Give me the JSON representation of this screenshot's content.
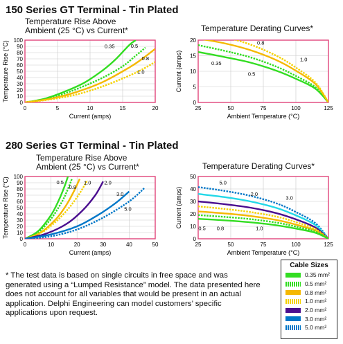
{
  "sections": [
    {
      "title": "150 Series GT Terminal - Tin Plated"
    },
    {
      "title": "280 Series GT Terminal - Tin Plated"
    }
  ],
  "chart_titles": {
    "rise_line1": "Temperature Rise Above",
    "rise_line2": "Ambient (25 °C) vs Current*",
    "derating": "Temperature Derating Curves*"
  },
  "note": "* The test data is based on single circuits in free space and was generated using a “Lumped Resistance” model. The data presented here does not account for all variables that would be present in an actual application. Delphi Engineering can model customers’ specific applications upon request.",
  "legend": {
    "title": "Cable Sizes",
    "items": [
      {
        "label": "0.35 mm²",
        "color": "#33dd22",
        "style": "solid"
      },
      {
        "label": "0.5 mm²",
        "color": "#33dd22",
        "style": "dotted"
      },
      {
        "label": "0.8 mm²",
        "color": "#f5b800",
        "style": "solid"
      },
      {
        "label": "1.0 mm²",
        "color": "#f5d200",
        "style": "dotted"
      },
      {
        "label": "2.0 mm²",
        "color": "#4a0d8f",
        "style": "solid"
      },
      {
        "label": "3.0 mm²",
        "color": "#0077c8",
        "style": "solid"
      },
      {
        "label": "5.0 mm²",
        "color": "#0077c8",
        "style": "dotted"
      }
    ]
  },
  "chart_data": [
    {
      "id": "150-rise",
      "type": "line",
      "xlabel": "Current (amps)",
      "ylabel": "Temperature Rise (°C)",
      "xlim": [
        0,
        20
      ],
      "ylim": [
        0,
        100
      ],
      "xticks": [
        0,
        5,
        10,
        15,
        20
      ],
      "yticks": [
        0,
        10,
        20,
        30,
        40,
        50,
        60,
        70,
        80,
        90,
        100
      ],
      "series": [
        {
          "name": "0.35",
          "color": "#33dd22",
          "style": "solid",
          "x": [
            0,
            3,
            6,
            9,
            12,
            14,
            16,
            17
          ],
          "y": [
            0,
            6,
            17,
            31,
            52,
            70,
            92,
            100
          ]
        },
        {
          "name": "0.5",
          "color": "#33dd22",
          "style": "dotted",
          "x": [
            0,
            3,
            6,
            9,
            12,
            15,
            17,
            18.5
          ],
          "y": [
            0,
            5,
            14,
            26,
            40,
            58,
            75,
            88
          ]
        },
        {
          "name": "0.8",
          "color": "#f5b800",
          "style": "solid",
          "x": [
            0,
            4,
            8,
            12,
            16,
            18,
            20
          ],
          "y": [
            0,
            6,
            17,
            33,
            56,
            70,
            86
          ]
        },
        {
          "name": "1.0",
          "color": "#f5d200",
          "style": "dotted",
          "x": [
            0,
            4,
            8,
            12,
            16,
            18,
            20
          ],
          "y": [
            0,
            5,
            13,
            26,
            43,
            53,
            65
          ]
        }
      ],
      "annotations": [
        {
          "text": "0.35",
          "x": 13.0,
          "y": 87
        },
        {
          "text": "0.5",
          "x": 16.8,
          "y": 88
        },
        {
          "text": "0.8",
          "x": 18.5,
          "y": 68
        },
        {
          "text": "1.0",
          "x": 17.8,
          "y": 46
        }
      ]
    },
    {
      "id": "150-derating",
      "type": "line",
      "xlabel": "Ambient Temperature (°C)",
      "ylabel": "Current (amps)",
      "xlim": [
        25,
        125
      ],
      "ylim": [
        0,
        20
      ],
      "xticks": [
        25,
        50,
        75,
        100,
        125
      ],
      "yticks": [
        0,
        5,
        10,
        15,
        20
      ],
      "series": [
        {
          "name": "0.35",
          "color": "#33dd22",
          "style": "solid",
          "x": [
            25,
            45,
            65,
            85,
            100,
            115,
            125
          ],
          "y": [
            16.2,
            14.6,
            12.8,
            10.2,
            7.6,
            4.4,
            0
          ]
        },
        {
          "name": "0.5",
          "color": "#33dd22",
          "style": "dotted",
          "x": [
            25,
            45,
            65,
            85,
            100,
            115,
            125
          ],
          "y": [
            18.4,
            16.6,
            14.5,
            11.5,
            8.5,
            4.9,
            0
          ]
        },
        {
          "name": "0.8",
          "color": "#f5b800",
          "style": "solid",
          "x": [
            25,
            45,
            65,
            85,
            100,
            115,
            125
          ],
          "y": [
            20.5,
            19.0,
            16.8,
            13.6,
            10.2,
            5.9,
            0
          ]
        },
        {
          "name": "1.0",
          "color": "#f5d200",
          "style": "dotted",
          "x": [
            25,
            45,
            65,
            85,
            100,
            115,
            125
          ],
          "y": [
            22.5,
            21.0,
            18.6,
            15.0,
            11.2,
            6.4,
            0
          ]
        }
      ],
      "annotations": [
        {
          "text": "0.35",
          "x": 39,
          "y": 12.0
        },
        {
          "text": "0.5",
          "x": 66,
          "y": 8.6
        },
        {
          "text": "0.8",
          "x": 73,
          "y": 18.6
        },
        {
          "text": "1.0",
          "x": 106,
          "y": 13.2
        }
      ]
    },
    {
      "id": "280-rise",
      "type": "line",
      "xlabel": "Current (amps)",
      "ylabel": "Temperature Rise (°C)",
      "xlim": [
        0,
        50
      ],
      "ylim": [
        0,
        100
      ],
      "xticks": [
        0,
        10,
        20,
        30,
        40,
        50
      ],
      "yticks": [
        0,
        10,
        20,
        30,
        40,
        50,
        60,
        70,
        80,
        90,
        100
      ],
      "series": [
        {
          "name": "0.5",
          "color": "#33dd22",
          "style": "solid",
          "x": [
            0,
            5,
            10,
            13,
            15,
            16.5
          ],
          "y": [
            0,
            12,
            38,
            62,
            82,
            100
          ]
        },
        {
          "name": "0.8",
          "color": "#33dd22",
          "style": "dotted",
          "x": [
            0,
            5,
            10,
            14,
            16,
            18
          ],
          "y": [
            0,
            10,
            32,
            58,
            75,
            96
          ]
        },
        {
          "name": "1.0",
          "color": "#f5b800",
          "style": "solid",
          "x": [
            0,
            6,
            12,
            16,
            19,
            21
          ],
          "y": [
            0,
            10,
            32,
            55,
            78,
            96
          ]
        },
        {
          "name": "1.0b",
          "color": "#f5d200",
          "style": "dotted",
          "x": [
            0,
            6,
            12,
            17,
            21,
            24
          ],
          "y": [
            0,
            9,
            28,
            50,
            73,
            94
          ]
        },
        {
          "name": "2.0",
          "color": "#4a0d8f",
          "style": "solid",
          "x": [
            0,
            8,
            16,
            22,
            27,
            30
          ],
          "y": [
            0,
            8,
            24,
            45,
            70,
            92
          ]
        },
        {
          "name": "3.0",
          "color": "#0077c8",
          "style": "solid",
          "x": [
            0,
            10,
            20,
            28,
            35,
            40
          ],
          "y": [
            0,
            7,
            20,
            38,
            58,
            76
          ]
        },
        {
          "name": "5.0",
          "color": "#0077c8",
          "style": "dotted",
          "x": [
            0,
            10,
            20,
            30,
            40,
            46
          ],
          "y": [
            0,
            4,
            15,
            34,
            60,
            82
          ]
        }
      ],
      "annotations": [
        {
          "text": "0.5",
          "x": 13.5,
          "y": 88
        },
        {
          "text": "0.8",
          "x": 18.3,
          "y": 80
        },
        {
          "text": "1.0",
          "x": 24.0,
          "y": 87
        },
        {
          "text": "2.0",
          "x": 31.8,
          "y": 87
        },
        {
          "text": "3.0",
          "x": 36.5,
          "y": 69
        },
        {
          "text": "5.0",
          "x": 39.5,
          "y": 45
        }
      ]
    },
    {
      "id": "280-derating",
      "type": "line",
      "xlabel": "Ambient Temperature (°C)",
      "ylabel": "Current (amps)",
      "xlim": [
        25,
        125
      ],
      "ylim": [
        0,
        50
      ],
      "xticks": [
        25,
        50,
        75,
        100,
        125
      ],
      "yticks": [
        0,
        10,
        20,
        30,
        40,
        50
      ],
      "series": [
        {
          "name": "5.0",
          "color": "#0077c8",
          "style": "dotted",
          "x": [
            25,
            45,
            65,
            85,
            100,
            115,
            125
          ],
          "y": [
            41.5,
            38.5,
            34.5,
            28.5,
            21.5,
            12.5,
            0
          ]
        },
        {
          "name": "3.0",
          "color": "#22d8e8",
          "style": "solid",
          "x": [
            25,
            45,
            65,
            85,
            100,
            115,
            125
          ],
          "y": [
            36.0,
            33.5,
            30.0,
            24.8,
            18.8,
            11.0,
            0
          ]
        },
        {
          "name": "2.0",
          "color": "#4a0d8f",
          "style": "solid",
          "x": [
            25,
            45,
            65,
            85,
            100,
            115,
            125
          ],
          "y": [
            30.0,
            27.8,
            25.0,
            20.6,
            15.6,
            9.0,
            0
          ]
        },
        {
          "name": "1.0",
          "color": "#f5d200",
          "style": "dotted",
          "x": [
            25,
            45,
            65,
            85,
            100,
            115,
            125
          ],
          "y": [
            26.0,
            24.0,
            21.5,
            17.8,
            13.4,
            7.8,
            0
          ]
        },
        {
          "name": "0.8",
          "color": "#f5b800",
          "style": "solid",
          "x": [
            25,
            45,
            65,
            85,
            100,
            115,
            125
          ],
          "y": [
            22.0,
            20.4,
            18.3,
            15.1,
            11.4,
            6.6,
            0
          ]
        },
        {
          "name": "0.5",
          "color": "#33dd22",
          "style": "dotted",
          "x": [
            25,
            45,
            65,
            85,
            100,
            115,
            125
          ],
          "y": [
            19.0,
            17.6,
            15.8,
            13.0,
            9.8,
            5.7,
            0
          ]
        },
        {
          "name": "0.35",
          "color": "#33dd22",
          "style": "solid",
          "x": [
            25,
            45,
            65,
            85,
            100,
            115,
            125
          ],
          "y": [
            16.0,
            14.8,
            13.2,
            10.9,
            8.2,
            4.8,
            0
          ]
        }
      ],
      "annotations": [
        {
          "text": "5.0",
          "x": 44,
          "y": 43.5
        },
        {
          "text": "2.0",
          "x": 68,
          "y": 34.5
        },
        {
          "text": "3.0",
          "x": 95,
          "y": 31.5
        },
        {
          "text": "0.5",
          "x": 28,
          "y": 7.0
        },
        {
          "text": "0.8",
          "x": 42,
          "y": 7.0
        },
        {
          "text": "1.0",
          "x": 72,
          "y": 7.0
        }
      ]
    }
  ]
}
